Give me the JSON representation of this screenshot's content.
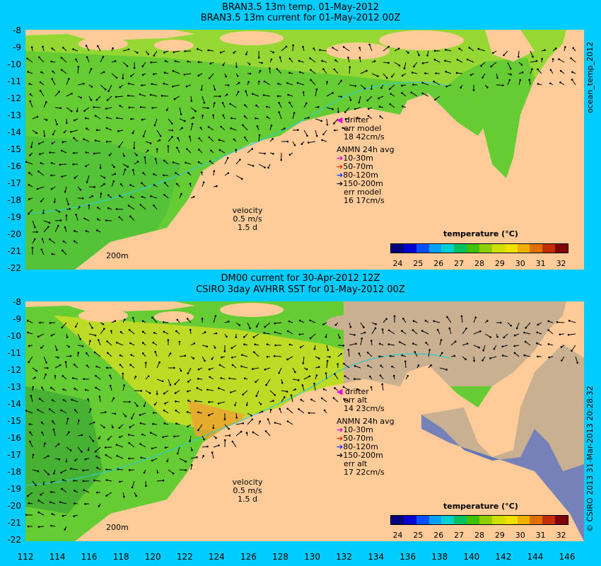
{
  "top_panel": {
    "title_line1": "BRAN3.5 13m temp. 01-May-2012",
    "title_line2": "BRAN3.5 13m current for 01-May-2012 00Z",
    "legend": {
      "drifter": "drifter",
      "err_label": "err model",
      "err_value": "18 42cm/s",
      "anmn_title": "ANMN 24h avg",
      "depths": [
        "10-30m",
        "50-70m",
        "80-120m",
        "150-200m"
      ],
      "err2_label": "err model",
      "err2_value": "16 17cm/s"
    },
    "velocity": {
      "line1": "velocity",
      "line2": "0.5 m/s",
      "line3": "1.5 d"
    },
    "isobath_label": "200m",
    "colorbar_title": "temperature (°C)",
    "side_label": "ocean_temp_2012"
  },
  "bottom_panel": {
    "title_line1": "DM00 current for 30-Apr-2012 12Z",
    "title_line2": "CSIRO 3day AVHRR SST for 01-May-2012 00Z",
    "legend": {
      "drifter": "drifter",
      "err_label": "err alt",
      "err_value": "14 23cm/s",
      "anmn_title": "ANMN 24h avg",
      "depths": [
        "10-30m",
        "50-70m",
        "80-120m",
        "150-200m"
      ],
      "err2_label": "err alt",
      "err2_value": "17 22cm/s"
    },
    "velocity": {
      "line1": "velocity",
      "line2": "0.5 m/s",
      "line3": "1.5 d"
    },
    "isobath_label": "200m",
    "colorbar_title": "temperature (°C)",
    "side_label": "© CSIRO 2013  31-Mar-2013 20:28:32"
  },
  "colorbar": {
    "ticks": [
      "24",
      "25",
      "26",
      "27",
      "28",
      "29",
      "30",
      "31",
      "32"
    ],
    "colors": [
      "#000080",
      "#0000d0",
      "#0050ff",
      "#00a0ff",
      "#00d0d0",
      "#00c060",
      "#40c000",
      "#90d000",
      "#d0e000",
      "#f0e000",
      "#f0b000",
      "#e07000",
      "#c03000",
      "#800000"
    ]
  },
  "axes": {
    "lat_ticks": [
      "-8",
      "-9",
      "-10",
      "-11",
      "-12",
      "-13",
      "-14",
      "-15",
      "-16",
      "-17",
      "-18",
      "-19",
      "-20",
      "-21",
      "-22"
    ],
    "lon_ticks": [
      "112",
      "114",
      "116",
      "118",
      "120",
      "122",
      "124",
      "126",
      "128",
      "130",
      "132",
      "134",
      "136",
      "138",
      "140",
      "142",
      "144",
      "146"
    ]
  },
  "colors": {
    "background": "#00ccff",
    "land": "#ffcc99",
    "ocean_main": "#66cc33",
    "ocean_warm": "#ccdd22",
    "cloud_land": "#c8b090",
    "isobath": "#33cccc"
  }
}
